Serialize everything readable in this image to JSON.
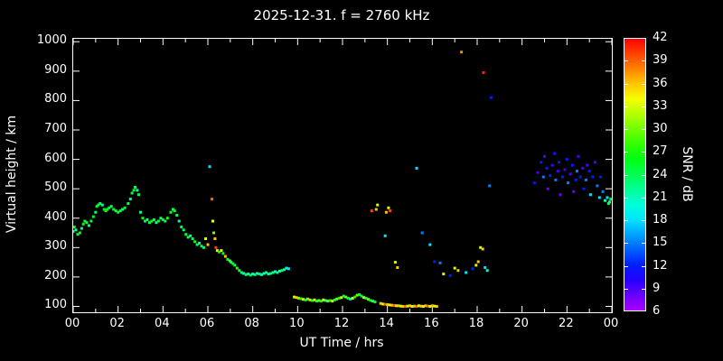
{
  "colors": {
    "background": "#000000",
    "foreground": "#ffffff"
  },
  "chart_data": {
    "type": "scatter",
    "title": "2025-12-31. f = 2760 kHz",
    "xlabel": "UT Time / hrs",
    "ylabel": "Virtual height / km",
    "colorbar_label": "SNR / dB",
    "grid": false,
    "legend": "colorbar-right",
    "xlim": [
      0,
      24
    ],
    "ylim": [
      80,
      1010
    ],
    "colorbar_range": [
      6,
      42
    ],
    "x_tick_values": [
      0,
      2,
      4,
      6,
      8,
      10,
      12,
      14,
      16,
      18,
      20,
      22,
      24
    ],
    "x_tick_labels": [
      "00",
      "02",
      "04",
      "06",
      "08",
      "10",
      "12",
      "14",
      "16",
      "18",
      "20",
      "22",
      "00"
    ],
    "y_tick_values": [
      100,
      200,
      300,
      400,
      500,
      600,
      700,
      800,
      900,
      1000
    ],
    "colorbar_tick_values": [
      6,
      9,
      12,
      15,
      18,
      21,
      24,
      27,
      30,
      33,
      36,
      39,
      42
    ],
    "point_format": [
      "ut_hours",
      "virtual_height_km",
      "snr_db"
    ],
    "points": [
      [
        0.0,
        355,
        24
      ],
      [
        0.05,
        370,
        26
      ],
      [
        0.12,
        360,
        22
      ],
      [
        0.2,
        345,
        25
      ],
      [
        0.3,
        350,
        27
      ],
      [
        0.38,
        365,
        23
      ],
      [
        0.45,
        380,
        26
      ],
      [
        0.52,
        390,
        24
      ],
      [
        0.6,
        385,
        27
      ],
      [
        0.7,
        375,
        22
      ],
      [
        0.8,
        390,
        25
      ],
      [
        0.9,
        405,
        26
      ],
      [
        1.0,
        420,
        23
      ],
      [
        1.05,
        440,
        27
      ],
      [
        1.12,
        445,
        25
      ],
      [
        1.2,
        450,
        24
      ],
      [
        1.3,
        445,
        22
      ],
      [
        1.38,
        430,
        26
      ],
      [
        1.45,
        425,
        27
      ],
      [
        1.52,
        430,
        24
      ],
      [
        1.6,
        435,
        25
      ],
      [
        1.7,
        440,
        23
      ],
      [
        1.8,
        430,
        26
      ],
      [
        1.9,
        425,
        24
      ],
      [
        2.0,
        420,
        27
      ],
      [
        2.1,
        425,
        25
      ],
      [
        2.2,
        430,
        23
      ],
      [
        2.3,
        435,
        26
      ],
      [
        2.45,
        450,
        24
      ],
      [
        2.55,
        465,
        22
      ],
      [
        2.62,
        485,
        25
      ],
      [
        2.7,
        495,
        27
      ],
      [
        2.76,
        505,
        24
      ],
      [
        2.85,
        495,
        21
      ],
      [
        2.92,
        480,
        25
      ],
      [
        3.0,
        420,
        23
      ],
      [
        3.1,
        400,
        26
      ],
      [
        3.2,
        390,
        24
      ],
      [
        3.3,
        395,
        22
      ],
      [
        3.4,
        385,
        25
      ],
      [
        3.5,
        390,
        27
      ],
      [
        3.6,
        395,
        24
      ],
      [
        3.7,
        385,
        22
      ],
      [
        3.8,
        390,
        25
      ],
      [
        3.9,
        400,
        23
      ],
      [
        4.0,
        395,
        26
      ],
      [
        4.1,
        390,
        24
      ],
      [
        4.2,
        400,
        27
      ],
      [
        4.35,
        420,
        25
      ],
      [
        4.45,
        430,
        23
      ],
      [
        4.52,
        425,
        26
      ],
      [
        4.62,
        410,
        24
      ],
      [
        4.72,
        390,
        22
      ],
      [
        4.82,
        370,
        25
      ],
      [
        4.92,
        360,
        23
      ],
      [
        5.02,
        345,
        26
      ],
      [
        5.12,
        335,
        24
      ],
      [
        5.22,
        340,
        22
      ],
      [
        5.32,
        330,
        25
      ],
      [
        5.42,
        320,
        27
      ],
      [
        5.52,
        310,
        24
      ],
      [
        5.62,
        315,
        22
      ],
      [
        5.72,
        305,
        25
      ],
      [
        5.82,
        300,
        23
      ],
      [
        5.9,
        330,
        33
      ],
      [
        6.0,
        310,
        36
      ],
      [
        6.08,
        575,
        18
      ],
      [
        6.18,
        465,
        39
      ],
      [
        6.22,
        390,
        34
      ],
      [
        6.26,
        350,
        30
      ],
      [
        6.32,
        330,
        36
      ],
      [
        6.36,
        300,
        40
      ],
      [
        6.42,
        290,
        33
      ],
      [
        6.5,
        285,
        27
      ],
      [
        6.6,
        290,
        33
      ],
      [
        6.68,
        280,
        25
      ],
      [
        6.78,
        270,
        36
      ],
      [
        6.88,
        260,
        24
      ],
      [
        6.98,
        255,
        30
      ],
      [
        7.04,
        250,
        22
      ],
      [
        7.12,
        245,
        26
      ],
      [
        7.2,
        240,
        24
      ],
      [
        7.3,
        230,
        28
      ],
      [
        7.4,
        222,
        25
      ],
      [
        7.5,
        215,
        23
      ],
      [
        7.6,
        212,
        21
      ],
      [
        7.7,
        208,
        24
      ],
      [
        7.8,
        210,
        22
      ],
      [
        7.9,
        206,
        25
      ],
      [
        8.0,
        210,
        20
      ],
      [
        8.1,
        208,
        23
      ],
      [
        8.2,
        212,
        21
      ],
      [
        8.3,
        210,
        24
      ],
      [
        8.4,
        208,
        22
      ],
      [
        8.5,
        212,
        20
      ],
      [
        8.6,
        215,
        23
      ],
      [
        8.7,
        210,
        21
      ],
      [
        8.8,
        212,
        24
      ],
      [
        8.9,
        215,
        22
      ],
      [
        9.0,
        218,
        20
      ],
      [
        9.1,
        215,
        23
      ],
      [
        9.2,
        220,
        21
      ],
      [
        9.3,
        222,
        24
      ],
      [
        9.4,
        225,
        22
      ],
      [
        9.5,
        230,
        20
      ],
      [
        9.6,
        228,
        18
      ],
      [
        9.85,
        132,
        33
      ],
      [
        9.95,
        130,
        36
      ],
      [
        10.05,
        128,
        30
      ],
      [
        10.15,
        126,
        27
      ],
      [
        10.25,
        124,
        33
      ],
      [
        10.35,
        122,
        24
      ],
      [
        10.45,
        125,
        30
      ],
      [
        10.55,
        122,
        36
      ],
      [
        10.65,
        120,
        27
      ],
      [
        10.75,
        122,
        33
      ],
      [
        10.85,
        118,
        24
      ],
      [
        10.95,
        120,
        30
      ],
      [
        11.05,
        118,
        27
      ],
      [
        11.15,
        122,
        33
      ],
      [
        11.25,
        120,
        21
      ],
      [
        11.35,
        118,
        30
      ],
      [
        11.45,
        120,
        27
      ],
      [
        11.55,
        118,
        33
      ],
      [
        11.65,
        122,
        24
      ],
      [
        11.75,
        125,
        30
      ],
      [
        11.85,
        128,
        27
      ],
      [
        11.95,
        130,
        33
      ],
      [
        12.05,
        135,
        24
      ],
      [
        12.15,
        132,
        30
      ],
      [
        12.25,
        128,
        27
      ],
      [
        12.35,
        125,
        21
      ],
      [
        12.45,
        128,
        33
      ],
      [
        12.55,
        132,
        27
      ],
      [
        12.65,
        138,
        30
      ],
      [
        12.75,
        140,
        24
      ],
      [
        12.85,
        135,
        27
      ],
      [
        12.95,
        130,
        33
      ],
      [
        13.05,
        128,
        24
      ],
      [
        13.15,
        124,
        30
      ],
      [
        13.25,
        120,
        27
      ],
      [
        13.35,
        118,
        21
      ],
      [
        13.45,
        115,
        27
      ],
      [
        13.7,
        110,
        36
      ],
      [
        13.8,
        108,
        33
      ],
      [
        13.9,
        107,
        39
      ],
      [
        14.0,
        106,
        36
      ],
      [
        14.1,
        105,
        33
      ],
      [
        14.2,
        104,
        36
      ],
      [
        14.3,
        103,
        39
      ],
      [
        14.4,
        102,
        33
      ],
      [
        14.5,
        102,
        36
      ],
      [
        14.6,
        101,
        33
      ],
      [
        14.7,
        100,
        36
      ],
      [
        14.8,
        100,
        39
      ],
      [
        14.9,
        101,
        33
      ],
      [
        15.0,
        102,
        36
      ],
      [
        15.1,
        100,
        33
      ],
      [
        15.2,
        101,
        36
      ],
      [
        15.3,
        100,
        39
      ],
      [
        15.4,
        102,
        33
      ],
      [
        15.5,
        101,
        36
      ],
      [
        15.6,
        100,
        33
      ],
      [
        15.7,
        102,
        36
      ],
      [
        15.8,
        101,
        39
      ],
      [
        15.9,
        100,
        33
      ],
      [
        16.0,
        102,
        36
      ],
      [
        16.1,
        101,
        33
      ],
      [
        16.2,
        100,
        36
      ],
      [
        13.3,
        425,
        40
      ],
      [
        13.5,
        430,
        36
      ],
      [
        13.56,
        445,
        33
      ],
      [
        13.95,
        420,
        36
      ],
      [
        14.05,
        435,
        33
      ],
      [
        14.12,
        425,
        40
      ],
      [
        13.9,
        340,
        18
      ],
      [
        14.35,
        250,
        33
      ],
      [
        14.45,
        232,
        36
      ],
      [
        15.3,
        570,
        18
      ],
      [
        15.55,
        350,
        15
      ],
      [
        15.9,
        310,
        18
      ],
      [
        16.1,
        252,
        12
      ],
      [
        16.35,
        248,
        15
      ],
      [
        16.5,
        210,
        33
      ],
      [
        16.8,
        205,
        12
      ],
      [
        17.0,
        230,
        33
      ],
      [
        17.15,
        222,
        36
      ],
      [
        17.3,
        965,
        38
      ],
      [
        17.5,
        215,
        18
      ],
      [
        17.8,
        228,
        12
      ],
      [
        17.95,
        240,
        33
      ],
      [
        18.05,
        252,
        36
      ],
      [
        18.15,
        300,
        33
      ],
      [
        18.25,
        295,
        36
      ],
      [
        18.28,
        895,
        41
      ],
      [
        18.35,
        232,
        18
      ],
      [
        18.45,
        222,
        21
      ],
      [
        18.55,
        510,
        15
      ],
      [
        18.62,
        810,
        12
      ],
      [
        20.55,
        520,
        12
      ],
      [
        20.7,
        555,
        9
      ],
      [
        20.85,
        590,
        12
      ],
      [
        20.95,
        540,
        15
      ],
      [
        21.0,
        610,
        9
      ],
      [
        21.1,
        570,
        12
      ],
      [
        21.15,
        500,
        8
      ],
      [
        21.25,
        545,
        12
      ],
      [
        21.35,
        580,
        9
      ],
      [
        21.45,
        620,
        12
      ],
      [
        21.5,
        530,
        15
      ],
      [
        21.6,
        560,
        9
      ],
      [
        21.65,
        590,
        12
      ],
      [
        21.7,
        480,
        8
      ],
      [
        21.8,
        540,
        12
      ],
      [
        21.9,
        565,
        9
      ],
      [
        22.0,
        600,
        12
      ],
      [
        22.05,
        520,
        15
      ],
      [
        22.15,
        550,
        9
      ],
      [
        22.25,
        580,
        12
      ],
      [
        22.3,
        490,
        8
      ],
      [
        22.4,
        530,
        12
      ],
      [
        22.45,
        560,
        15
      ],
      [
        22.5,
        610,
        9
      ],
      [
        22.6,
        540,
        12
      ],
      [
        22.7,
        570,
        9
      ],
      [
        22.75,
        500,
        12
      ],
      [
        22.85,
        530,
        15
      ],
      [
        22.9,
        580,
        9
      ],
      [
        23.0,
        560,
        12
      ],
      [
        23.05,
        480,
        18
      ],
      [
        23.15,
        540,
        12
      ],
      [
        23.25,
        590,
        9
      ],
      [
        23.35,
        510,
        15
      ],
      [
        23.45,
        470,
        18
      ],
      [
        23.5,
        540,
        12
      ],
      [
        23.6,
        490,
        15
      ],
      [
        23.7,
        460,
        21
      ],
      [
        23.8,
        470,
        18
      ],
      [
        23.85,
        450,
        24
      ],
      [
        23.9,
        455,
        21
      ],
      [
        23.95,
        465,
        24
      ]
    ]
  }
}
